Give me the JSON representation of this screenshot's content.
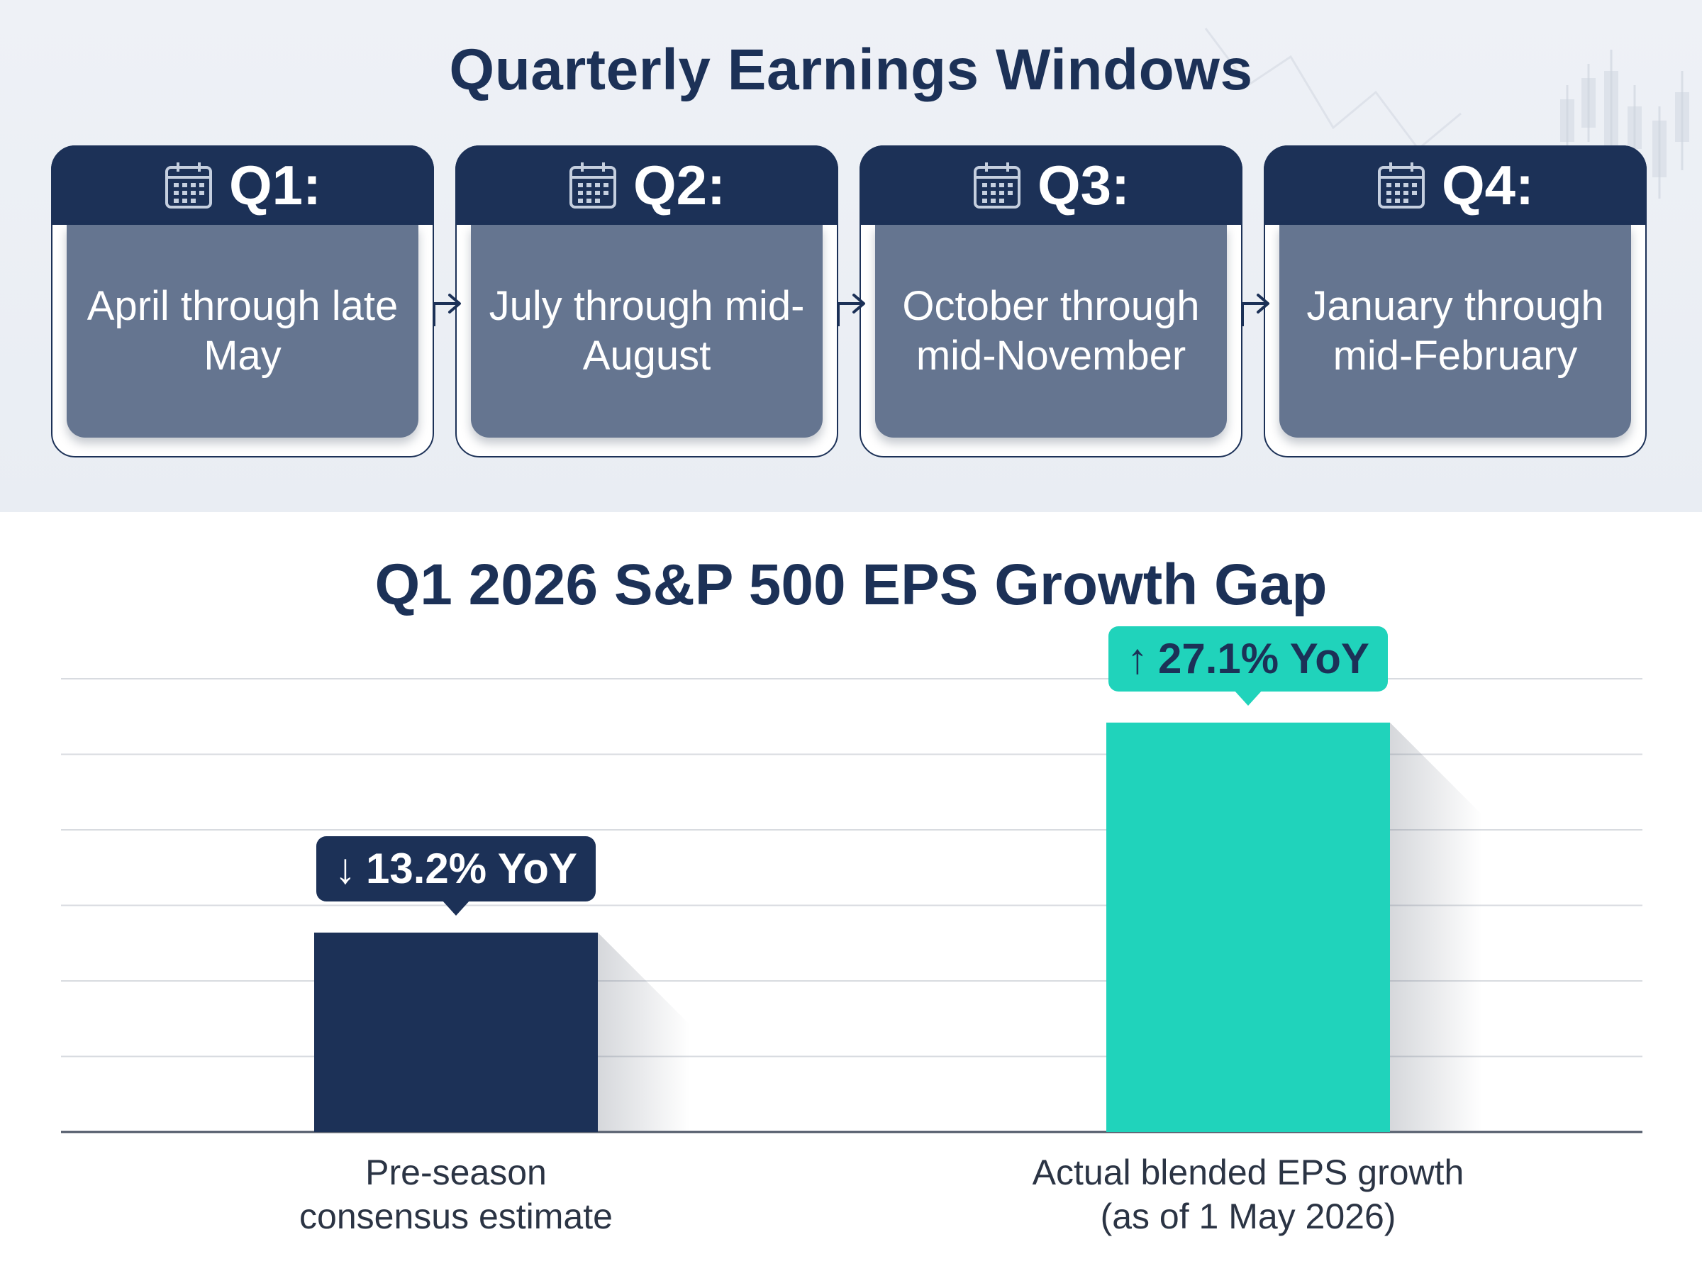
{
  "windows": {
    "title": "Quarterly Earnings Windows",
    "quarters": [
      {
        "label": "Q1:",
        "period": "April through late May"
      },
      {
        "label": "Q2:",
        "period": "July through mid-August"
      },
      {
        "label": "Q3:",
        "period": "October through mid-November"
      },
      {
        "label": "Q4:",
        "period": "January through mid-February"
      }
    ],
    "colors": {
      "header": "#1c3157",
      "body": "#657590",
      "background": "#eef1f6"
    }
  },
  "chart_data": {
    "type": "bar",
    "title": "Q1 2026 S&P 500 EPS Growth Gap",
    "xlabel": "",
    "ylabel": "",
    "grid": true,
    "ylim": [
      0,
      30
    ],
    "categories": [
      [
        "Pre-season",
        "consensus estimate"
      ],
      [
        "Actual blended EPS growth",
        "(as of 1 May 2026)"
      ]
    ],
    "values": [
      13.2,
      27.1
    ],
    "data_labels": [
      {
        "arrow": "↓",
        "text": "13.2% YoY"
      },
      {
        "arrow": "↑",
        "text": "27.1% YoY"
      }
    ],
    "colors": [
      "#1c3157",
      "#20d3bb"
    ]
  }
}
